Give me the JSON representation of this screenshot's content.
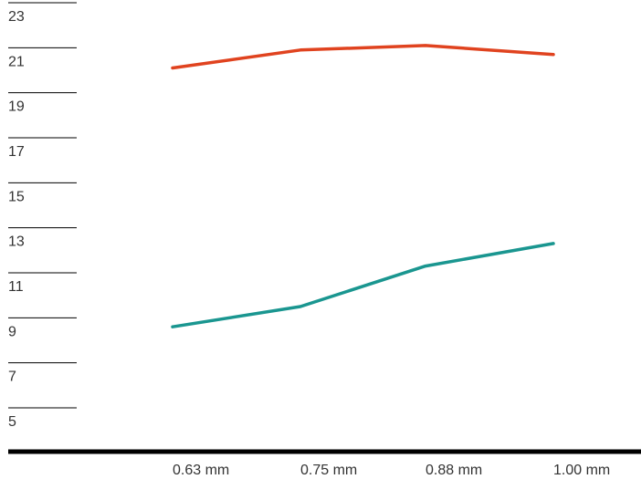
{
  "chart_data": {
    "type": "line",
    "title": "",
    "xlabel": "",
    "ylabel": "",
    "categories": [
      "0.63 mm",
      "0.75 mm",
      "0.88 mm",
      "1.00 mm"
    ],
    "y_ticks": [
      "23",
      "21",
      "19",
      "17",
      "15",
      "13",
      "11",
      "9",
      "7",
      "5"
    ],
    "ylim": [
      5,
      23
    ],
    "grid": false,
    "legend": "none",
    "series": [
      {
        "color": "#e0431f",
        "values": [
          20.1,
          20.9,
          21.1,
          20.7
        ]
      },
      {
        "color": "#1a9690",
        "values": [
          8.6,
          9.5,
          11.3,
          12.3
        ]
      }
    ]
  },
  "colors": {
    "axis": "#000000",
    "tick_line": "#000000",
    "text": "#333333"
  }
}
